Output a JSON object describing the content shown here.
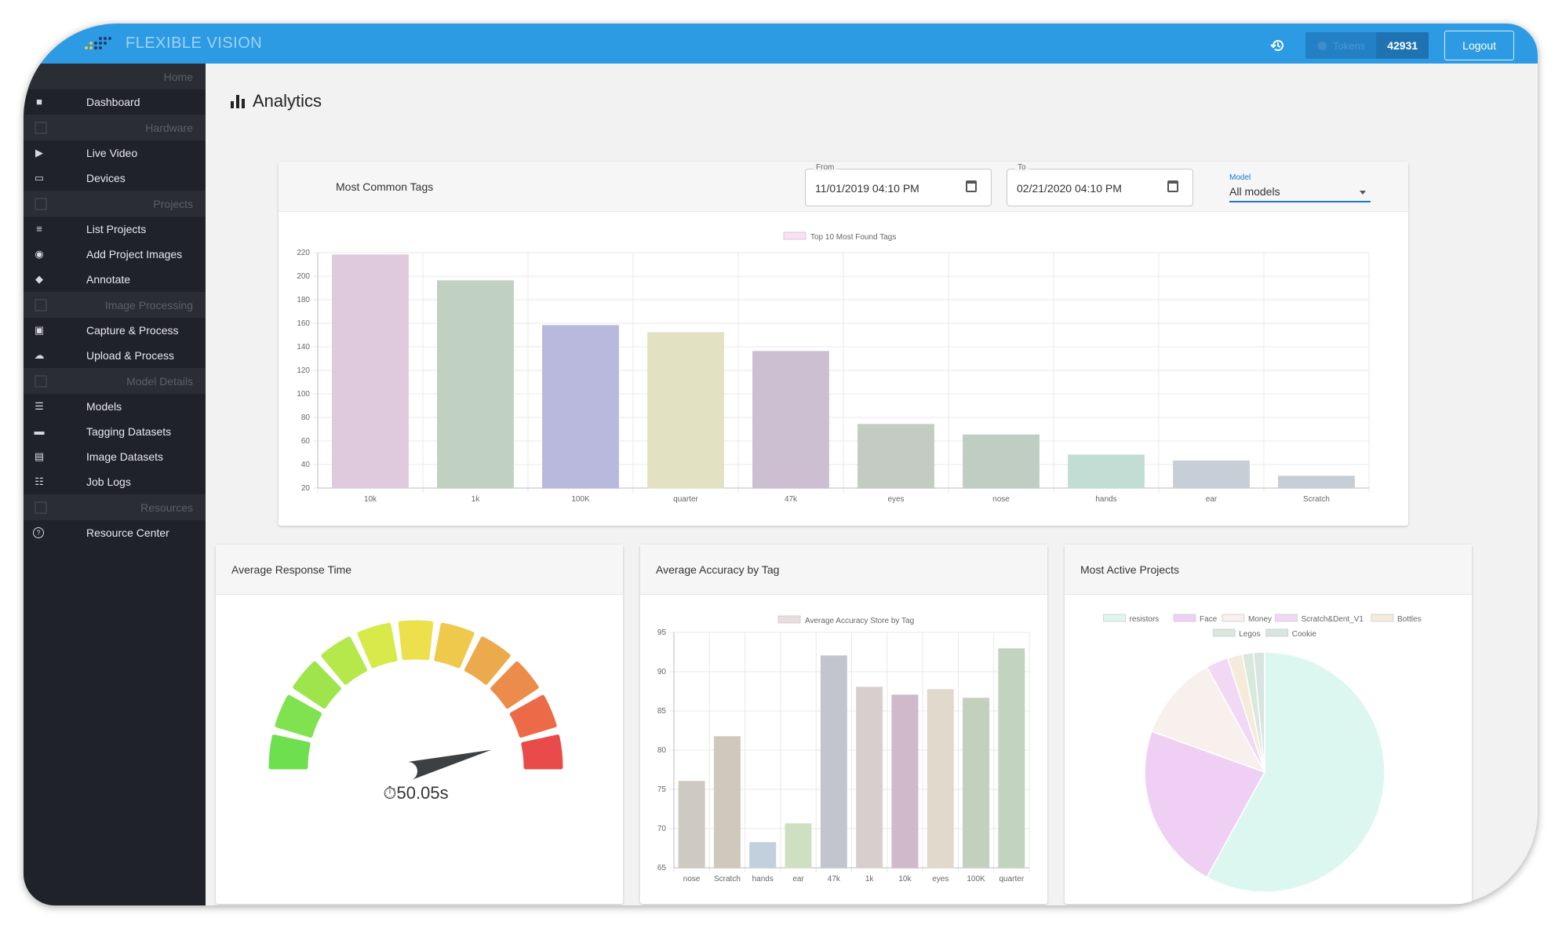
{
  "app": {
    "name": "FLEXIBLE VISION"
  },
  "topbar": {
    "tokens_label": "Tokens",
    "tokens_count": "42931",
    "logout_label": "Logout"
  },
  "sidebar": {
    "groups": [
      {
        "section": "Home",
        "items": [
          {
            "label": "Dashboard",
            "icon": "dashboard-icon"
          }
        ]
      },
      {
        "section": "Hardware",
        "items": [
          {
            "label": "Live Video",
            "icon": "video-icon"
          },
          {
            "label": "Devices",
            "icon": "devices-icon"
          }
        ]
      },
      {
        "section": "Projects",
        "items": [
          {
            "label": "List Projects",
            "icon": "list-icon"
          },
          {
            "label": "Add Project Images",
            "icon": "camera-icon"
          },
          {
            "label": "Annotate",
            "icon": "tag-icon"
          }
        ]
      },
      {
        "section": "Image Processing",
        "items": [
          {
            "label": "Capture & Process",
            "icon": "capture-icon"
          },
          {
            "label": "Upload & Process",
            "icon": "cloud-upload-icon"
          }
        ]
      },
      {
        "section": "Model Details",
        "items": [
          {
            "label": "Models",
            "icon": "models-icon"
          },
          {
            "label": "Tagging Datasets",
            "icon": "tag-dataset-icon"
          },
          {
            "label": "Image Datasets",
            "icon": "image-dataset-icon"
          },
          {
            "label": "Job Logs",
            "icon": "log-icon"
          }
        ]
      },
      {
        "section": "Resources",
        "items": [
          {
            "label": "Resource Center",
            "icon": "help-icon"
          }
        ]
      }
    ]
  },
  "page": {
    "title": "Analytics"
  },
  "tags_card": {
    "title": "Most Common Tags",
    "from_label": "From",
    "from_value": "11/01/2019 04:10 PM",
    "to_label": "To",
    "to_value": "02/21/2020 04:10 PM",
    "model_label": "Model",
    "model_value": "All models"
  },
  "response_card": {
    "title": "Average Response Time",
    "value": "50.05s",
    "gauge_fraction": 0.92
  },
  "accuracy_card": {
    "title": "Average Accuracy by Tag"
  },
  "projects_card": {
    "title": "Most Active Projects"
  },
  "colors": {
    "topbar": "#2d9be3",
    "sidebar": "#1f2228",
    "accent": "#1976d2"
  },
  "chart_data": [
    {
      "type": "bar",
      "legend": "Top 10 Most Found Tags",
      "categories": [
        "10k",
        "1k",
        "100K",
        "quarter",
        "47k",
        "eyes",
        "nose",
        "hands",
        "ear",
        "Scratch"
      ],
      "values": [
        218,
        196,
        158,
        152,
        136,
        74,
        65,
        48,
        43,
        30
      ],
      "yticks": [
        20,
        40,
        60,
        80,
        100,
        120,
        140,
        160,
        180,
        200,
        220
      ],
      "ylim": [
        20,
        220
      ],
      "colors": [
        "#f8e0f5",
        "#d6e8d6",
        "#cdcdf7",
        "#fbfbd8",
        "#e2d4e8",
        "#d9e2d9",
        "#d4e4d9",
        "#d8f6ea",
        "#dde5ee",
        "#dde4ec"
      ]
    },
    {
      "type": "bar",
      "legend": "Average Accuracy Store by Tag",
      "categories": [
        "nose",
        "Scratch",
        "hands",
        "ear",
        "47k",
        "1k",
        "10k",
        "eyes",
        "100K",
        "quarter"
      ],
      "values": [
        76,
        81.7,
        68.2,
        70.6,
        92,
        88,
        87,
        87.7,
        86.6,
        92.9
      ],
      "yticks": [
        65,
        70,
        75,
        80,
        85,
        90,
        95
      ],
      "ylim": [
        65,
        95
      ],
      "colors": [
        "#e5e0d8",
        "#e6dfd2",
        "#d8e6f6",
        "#e6f8d6",
        "#d8dbe4",
        "#efe6e4",
        "#e6cde0",
        "#fbf1e4",
        "#d9e7d2",
        "#d8ebd4"
      ]
    },
    {
      "type": "pie",
      "legend_entries": [
        "resistors",
        "Face",
        "Money",
        "Scratch&Dent_V1",
        "Bottles",
        "Legos",
        "Cookie"
      ],
      "values": [
        58,
        22.5,
        11.5,
        3,
        2,
        1.5,
        1.5
      ],
      "colors": [
        "#dcf7ef",
        "#efd0f4",
        "#f8f0ec",
        "#f1d8f4",
        "#f4ebdb",
        "#d8e8da",
        "#d8e4e0"
      ]
    }
  ]
}
